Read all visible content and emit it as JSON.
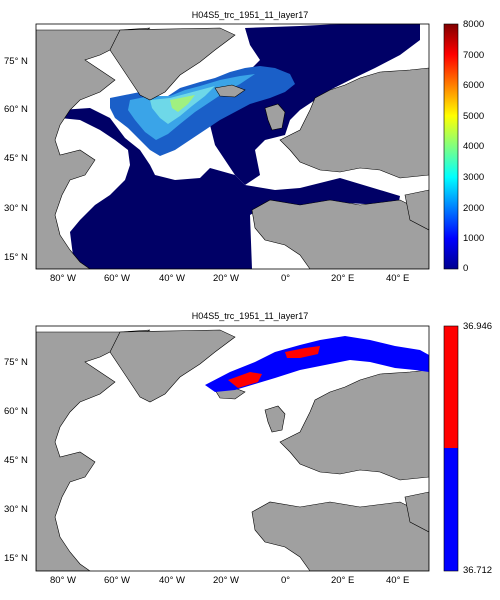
{
  "panels": [
    {
      "title": "H04S5_trc_1951_11_layer17",
      "y_ticks": [
        "75° N",
        "60° N",
        "45° N",
        "30° N",
        "15° N"
      ],
      "x_ticks": [
        "80° W",
        "60° W",
        "40° W",
        "20° W",
        "0°",
        "20° E",
        "40° E"
      ],
      "colorbar": {
        "ticks": [
          "8000",
          "7000",
          "6000",
          "5000",
          "4000",
          "3000",
          "2000",
          "1000",
          "0"
        ]
      }
    },
    {
      "title": "H04S5_trc_1951_11_layer17",
      "y_ticks": [
        "75° N",
        "60° N",
        "45° N",
        "30° N",
        "15° N"
      ],
      "x_ticks": [
        "80° W",
        "60° W",
        "40° W",
        "20° W",
        "0°",
        "20° E",
        "40° E"
      ],
      "colorbar": {
        "ticks": [
          "36.946",
          "36.712"
        ]
      }
    }
  ],
  "colors": {
    "land": "#a0a0a0",
    "ocean_low": "#000066",
    "red": "#ff0000",
    "blue": "#0000ff"
  }
}
